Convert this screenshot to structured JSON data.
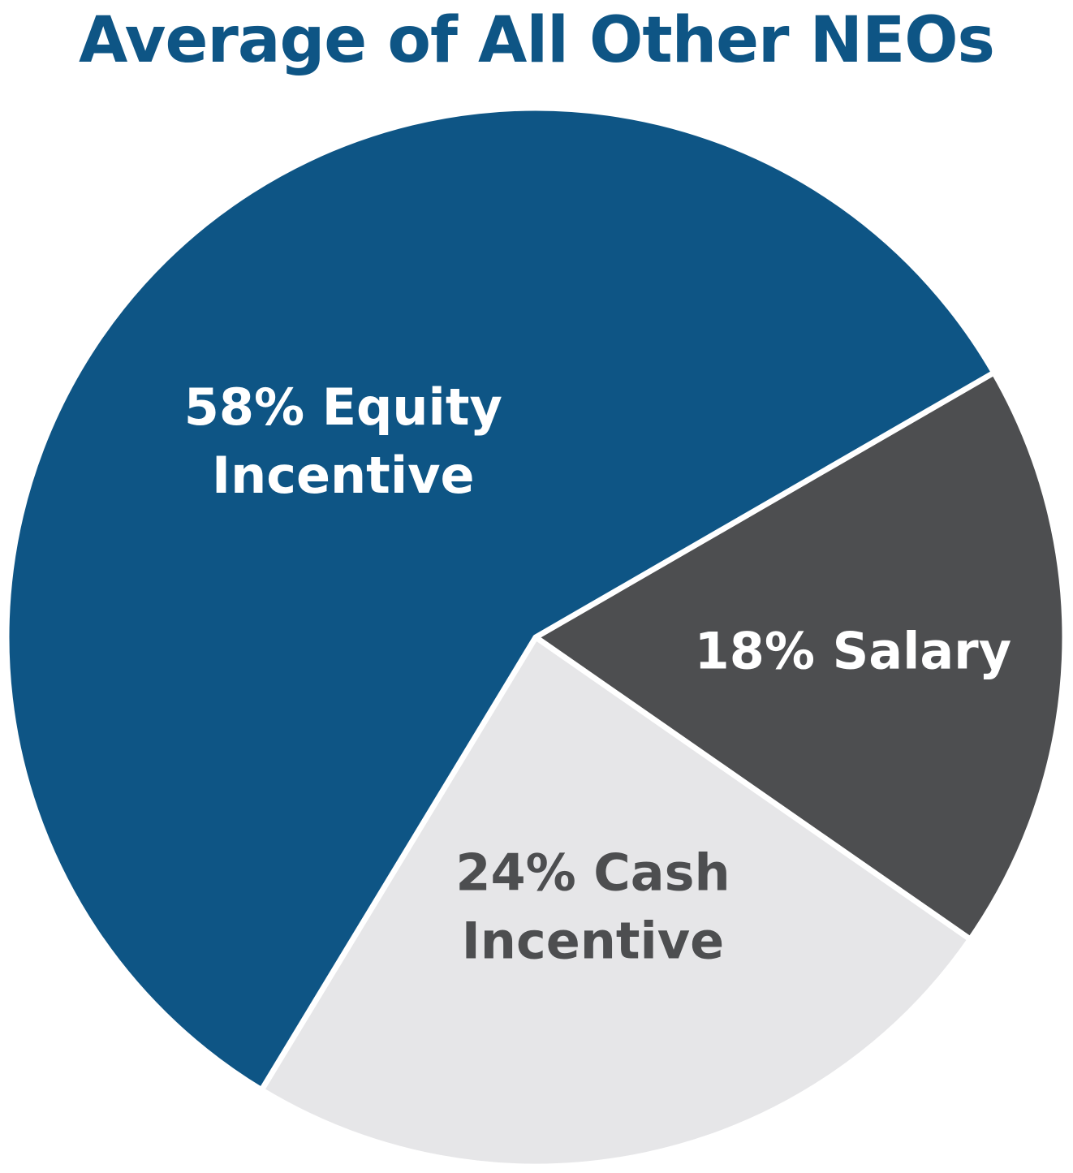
{
  "title": "Average of All Other NEOs",
  "colors": {
    "title": "#0e5585",
    "separator": "#ffffff"
  },
  "chart_data": {
    "type": "pie",
    "title": "Average of All Other NEOs",
    "slices": [
      {
        "name": "Salary",
        "value": 18,
        "label_lines": [
          "18% Salary"
        ],
        "color": "#4d4e50",
        "label_color": "#ffffff"
      },
      {
        "name": "Cash Incentive",
        "value": 24,
        "label_lines": [
          "24% Cash",
          "Incentive"
        ],
        "color": "#e6e6e8",
        "label_color": "#4d4e50"
      },
      {
        "name": "Equity Incentive",
        "value": 58,
        "label_lines": [
          "58% Equity",
          "Incentive"
        ],
        "color": "#0e5585",
        "label_color": "#ffffff"
      }
    ]
  }
}
